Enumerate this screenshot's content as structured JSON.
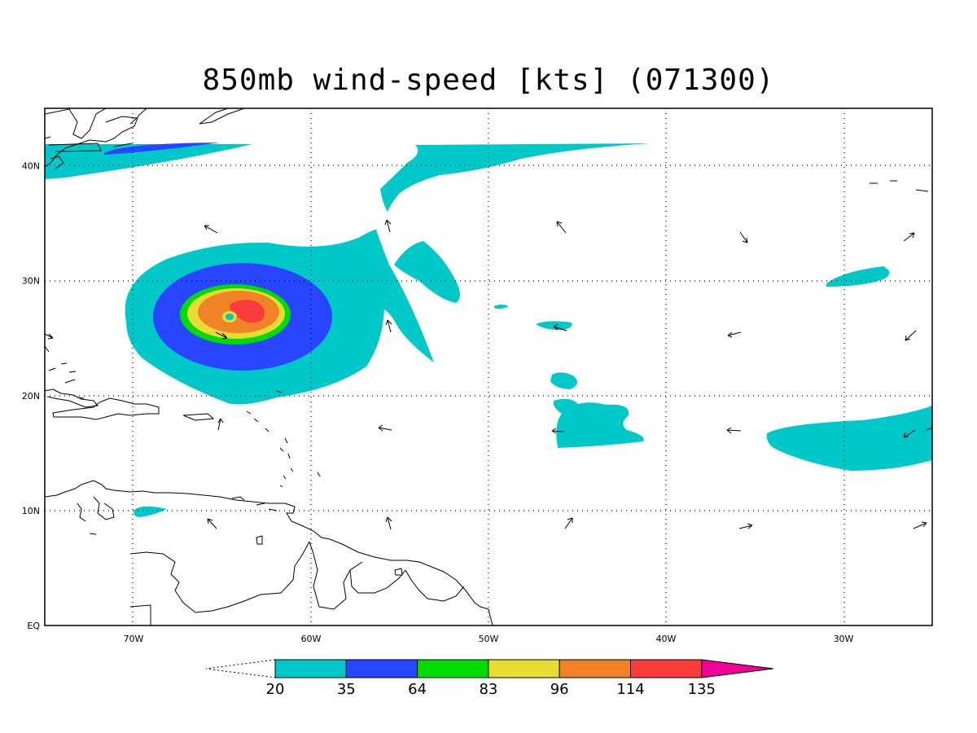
{
  "title": "850mb wind-speed [kts] (071300)",
  "map": {
    "lon_range": [
      -75,
      -25
    ],
    "lat_range": [
      0,
      45
    ],
    "lon_ticks": [
      {
        "value": -70,
        "label": "70W"
      },
      {
        "value": -60,
        "label": "60W"
      },
      {
        "value": -50,
        "label": "50W"
      },
      {
        "value": -40,
        "label": "40W"
      },
      {
        "value": -30,
        "label": "30W"
      }
    ],
    "lat_ticks": [
      {
        "value": 0,
        "label": "EQ"
      },
      {
        "value": 10,
        "label": "10N"
      },
      {
        "value": 20,
        "label": "20N"
      },
      {
        "value": 30,
        "label": "30N"
      },
      {
        "value": 40,
        "label": "40N"
      }
    ],
    "grid": "dotted"
  },
  "colorbar": {
    "levels": [
      "20",
      "35",
      "64",
      "83",
      "96",
      "114",
      "135"
    ],
    "colors": [
      "#00c8c8",
      "#2846ff",
      "#00dc00",
      "#e6dc32",
      "#f08228",
      "#fa3c3c",
      "#f00096"
    ],
    "below_color": "#ffffff"
  }
}
